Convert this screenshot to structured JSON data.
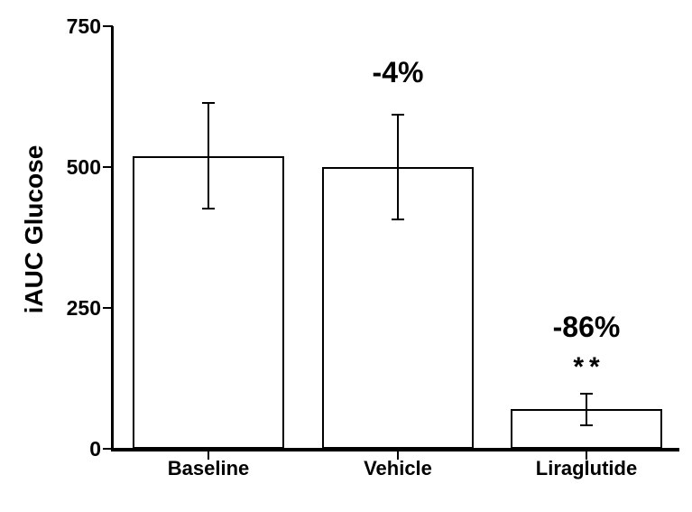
{
  "chart_data": {
    "type": "bar",
    "title": "",
    "xlabel": "",
    "ylabel": "iAUC Glucose",
    "ylim": [
      0,
      750
    ],
    "yticks": [
      0,
      250,
      500,
      750
    ],
    "categories": [
      "Baseline",
      "Vehicle",
      "Liraglutide"
    ],
    "values": [
      520,
      500,
      70
    ],
    "error_bars": [
      93,
      93,
      28
    ],
    "annotations": [
      {
        "category": "Vehicle",
        "percent_change_label": "-4%",
        "significance": ""
      },
      {
        "category": "Liraglutide",
        "percent_change_label": "-86%",
        "significance": "**"
      }
    ],
    "legend": "none",
    "grid": false,
    "colors": {
      "background": "#ffffff",
      "bar_fill": "#ffffff",
      "bar_border": "#000000",
      "axis": "#000000",
      "text": "#000000"
    }
  }
}
